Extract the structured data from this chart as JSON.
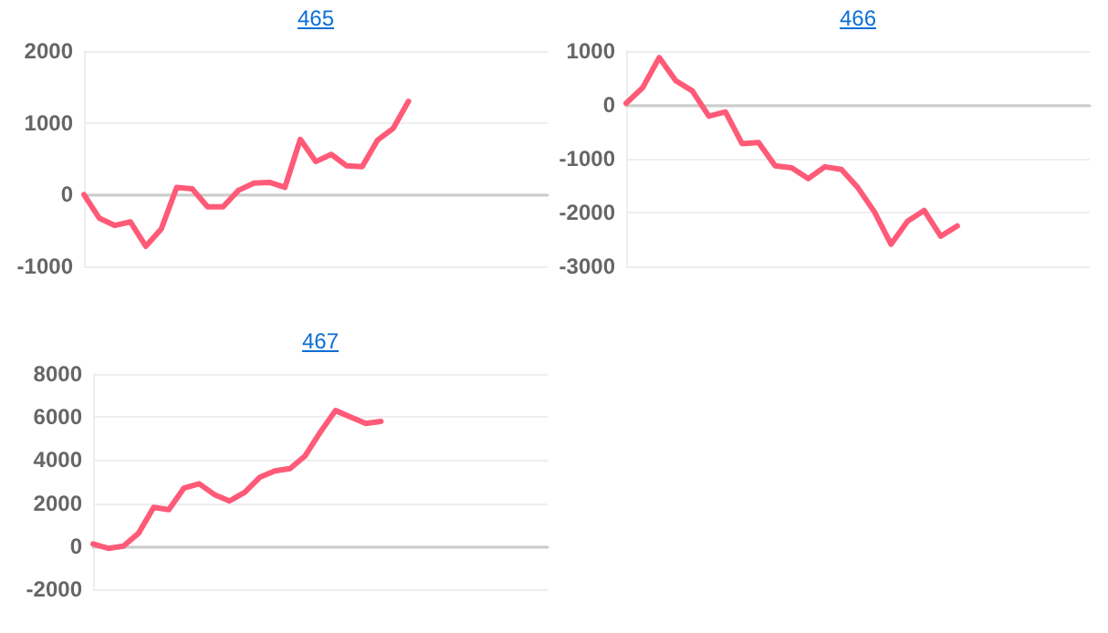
{
  "chart_data": [
    {
      "type": "line",
      "title": "465",
      "categories": [
        null,
        null,
        null,
        null,
        null,
        null,
        null,
        null,
        null,
        null,
        null,
        null,
        null,
        null,
        null,
        null,
        null,
        null,
        null,
        null,
        null,
        null,
        null,
        null,
        null,
        null,
        null,
        null,
        null,
        null,
        null
      ],
      "series": [
        {
          "color": "#ff5a78",
          "values": [
            0,
            -330,
            -430,
            -380,
            -720,
            -480,
            100,
            80,
            -170,
            -170,
            60,
            160,
            170,
            100,
            770,
            460,
            560,
            400,
            390,
            760,
            920,
            1300,
            null,
            null,
            null,
            null,
            null,
            null,
            null,
            null,
            null
          ]
        }
      ],
      "ylim": [
        -1000,
        2000
      ],
      "yticks": [
        -1000,
        0,
        1000,
        2000
      ],
      "grid": "y",
      "tick_labels": "y",
      "line_style": "solid"
    },
    {
      "type": "line",
      "title": "466",
      "categories": [
        null,
        null,
        null,
        null,
        null,
        null,
        null,
        null,
        null,
        null,
        null,
        null,
        null,
        null,
        null,
        null,
        null,
        null,
        null,
        null,
        null,
        null,
        null,
        null,
        null,
        null,
        null,
        null,
        null
      ],
      "series": [
        {
          "color": "#ff5a78",
          "values": [
            30,
            320,
            880,
            450,
            260,
            -210,
            -130,
            -720,
            -700,
            -1130,
            -1170,
            -1370,
            -1150,
            -1200,
            -1540,
            -1990,
            -2590,
            -2160,
            -1960,
            -2440,
            -2250,
            null,
            null,
            null,
            null,
            null,
            null,
            null,
            null
          ]
        }
      ],
      "ylim": [
        -3000,
        1000
      ],
      "yticks": [
        -3000,
        -2000,
        -1000,
        0,
        1000
      ],
      "grid": "y",
      "tick_labels": "y",
      "line_style": "solid"
    },
    {
      "type": "line",
      "title": "467",
      "categories": [
        null,
        null,
        null,
        null,
        null,
        null,
        null,
        null,
        null,
        null,
        null,
        null,
        null,
        null,
        null,
        null,
        null,
        null,
        null,
        null,
        null,
        null,
        null,
        null,
        null,
        null,
        null,
        null,
        null,
        null,
        null
      ],
      "series": [
        {
          "color": "#ff5a78",
          "values": [
            100,
            -100,
            0,
            600,
            1800,
            1700,
            2700,
            2900,
            2400,
            2100,
            2500,
            3200,
            3500,
            3600,
            4200,
            5300,
            6300,
            6000,
            5700,
            5800,
            null,
            null,
            null,
            null,
            null,
            null,
            null,
            null,
            null,
            null,
            null
          ]
        }
      ],
      "ylim": [
        -2000,
        8000
      ],
      "yticks": [
        -2000,
        0,
        2000,
        4000,
        6000,
        8000
      ],
      "grid": "y",
      "tick_labels": "y",
      "line_style": "solid"
    }
  ]
}
